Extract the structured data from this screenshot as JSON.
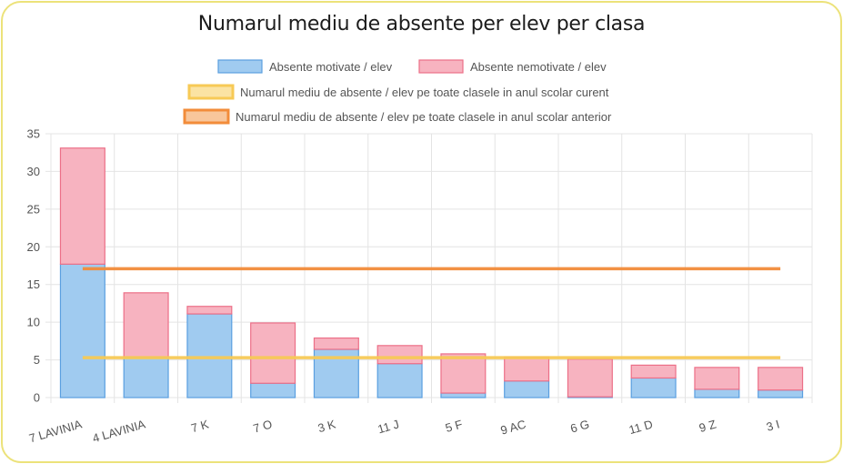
{
  "chart_data": {
    "type": "bar",
    "stacked": true,
    "title": "Numarul mediu de absente per elev per clasa",
    "categories": [
      "7 LAVINIA",
      "4 LAVINIA",
      "7 K",
      "7 O",
      "3 K",
      "11 J",
      "5 F",
      "9 AC",
      "6 G",
      "11 D",
      "9 Z",
      "3 I"
    ],
    "series": [
      {
        "name": "Absente motivate / elev",
        "values": [
          17.7,
          5.4,
          11.1,
          1.9,
          6.4,
          4.5,
          0.6,
          2.2,
          0.1,
          2.6,
          1.1,
          1.0
        ],
        "color": "#a0cbf0",
        "border": "#5a9fe0"
      },
      {
        "name": "Absente nemotivate / elev",
        "values": [
          15.4,
          8.5,
          1.0,
          8.0,
          1.5,
          2.4,
          5.2,
          3.2,
          5.0,
          1.7,
          2.9,
          3.0
        ],
        "color": "#f7b3c0",
        "border": "#ec6f87"
      }
    ],
    "lines": [
      {
        "name": "Numarul mediu de absente / elev pe toate clasele in anul scolar curent",
        "value": 5.3,
        "color": "#f7ca56",
        "fill": "#fbe3a3"
      },
      {
        "name": "Numarul mediu de absente / elev pe toate clasele in anul scolar anterior",
        "value": 17.1,
        "color": "#f28c3a",
        "fill": "#f8c69b"
      }
    ],
    "ylim": [
      0,
      35
    ],
    "yticks": [
      0,
      5,
      10,
      15,
      20,
      25,
      30,
      35
    ],
    "grid": true,
    "legend_position": "top"
  }
}
